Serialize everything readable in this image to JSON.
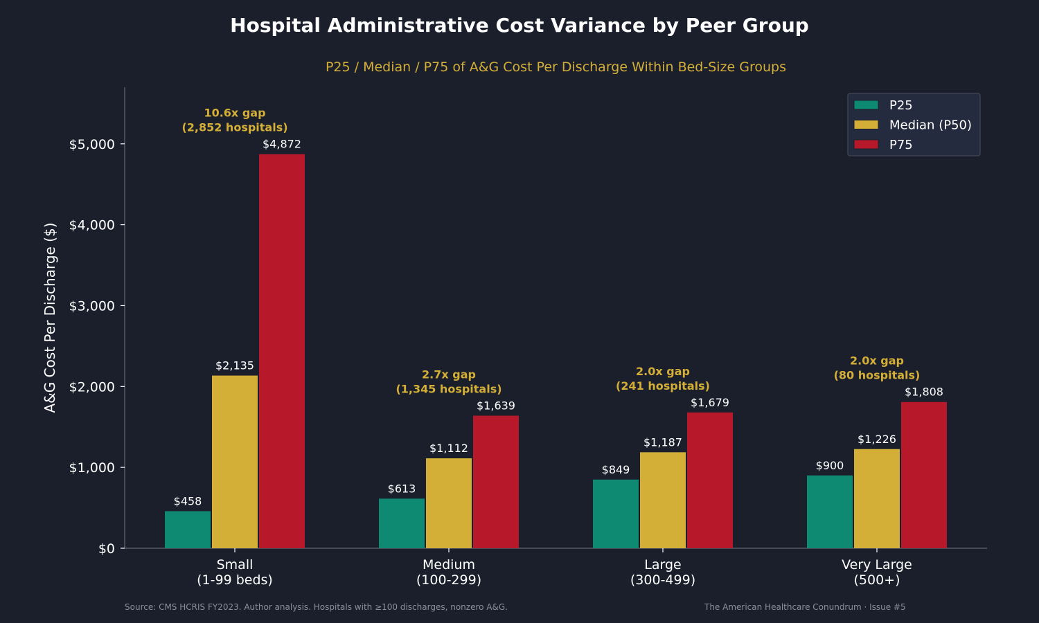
{
  "title": "Hospital Administrative Cost Variance by Peer Group",
  "subtitle": "P25 / Median / P75 of A&G Cost Per Discharge Within Bed-Size Groups",
  "footer": {
    "source": "Source: CMS HCRIS FY2023. Author analysis. Hospitals with ≥100 discharges, nonzero A&G.",
    "credit": "The American Healthcare Conundrum · Issue #5"
  },
  "colors": {
    "background": "#1b1f2c",
    "p25": "#0f8a72",
    "p50": "#d4af37",
    "p75": "#b8192a",
    "annotation": "#d4af37",
    "axis": "#555a66"
  },
  "chart_data": {
    "type": "bar",
    "title": "Hospital Administrative Cost Variance by Peer Group",
    "subtitle": "P25 / Median / P75 of A&G Cost Per Discharge Within Bed-Size Groups",
    "xlabel": "",
    "ylabel": "A&G Cost Per Discharge ($)",
    "ylim": [
      0,
      5700
    ],
    "yticks": [
      0,
      1000,
      2000,
      3000,
      4000,
      5000
    ],
    "ytick_labels": [
      "$0",
      "$1,000",
      "$2,000",
      "$3,000",
      "$4,000",
      "$5,000"
    ],
    "categories": [
      [
        "Small",
        "(1-99 beds)"
      ],
      [
        "Medium",
        "(100-299)"
      ],
      [
        "Large",
        "(300-499)"
      ],
      [
        "Very Large",
        "(500+)"
      ]
    ],
    "series": [
      {
        "name": "P25",
        "values": [
          458,
          613,
          849,
          900
        ],
        "labels": [
          "$458",
          "$613",
          "$849",
          "$900"
        ]
      },
      {
        "name": "Median (P50)",
        "values": [
          2135,
          1112,
          1187,
          1226
        ],
        "labels": [
          "$2,135",
          "$1,112",
          "$1,187",
          "$1,226"
        ]
      },
      {
        "name": "P75",
        "values": [
          4872,
          1639,
          1679,
          1808
        ],
        "labels": [
          "$4,872",
          "$1,639",
          "$1,679",
          "$1,808"
        ]
      }
    ],
    "annotations": [
      [
        "10.6x gap",
        "(2,852 hospitals)"
      ],
      [
        "2.7x gap",
        "(1,345 hospitals)"
      ],
      [
        "2.0x gap",
        "(241 hospitals)"
      ],
      [
        "2.0x gap",
        "(80 hospitals)"
      ]
    ],
    "legend": "top-right",
    "grid": false
  }
}
